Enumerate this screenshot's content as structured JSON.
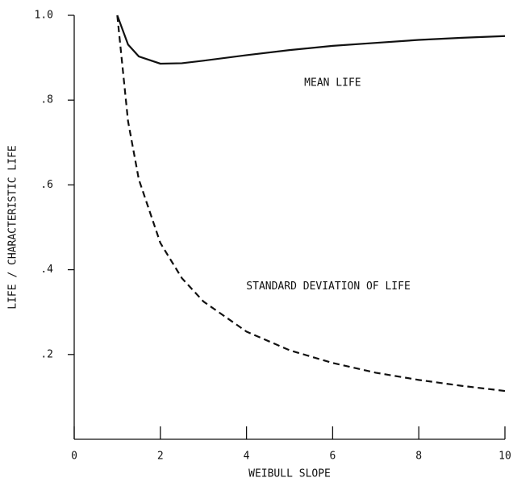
{
  "chart_data": {
    "type": "line",
    "xlabel": "WEIBULL SLOPE",
    "ylabel": "LIFE / CHARACTERISTIC LIFE",
    "x": [
      1,
      1.25,
      1.5,
      2,
      2.5,
      3,
      4,
      5,
      6,
      7,
      8,
      9,
      10
    ],
    "series": [
      {
        "name": "MEAN LIFE",
        "color": "#111111",
        "dash": false,
        "values": [
          1.0,
          0.931,
          0.903,
          0.886,
          0.887,
          0.893,
          0.906,
          0.918,
          0.928,
          0.935,
          0.942,
          0.947,
          0.951
        ]
      },
      {
        "name": "STANDARD DEVIATION OF LIFE",
        "color": "#111111",
        "dash": true,
        "values": [
          1.0,
          0.75,
          0.613,
          0.463,
          0.38,
          0.325,
          0.254,
          0.21,
          0.18,
          0.157,
          0.14,
          0.126,
          0.114
        ]
      }
    ],
    "xlim": [
      0,
      10
    ],
    "xticks": [
      0,
      2,
      4,
      6,
      8,
      10
    ],
    "ylim": [
      0,
      1
    ],
    "yticks": [
      {
        "value": 0.2,
        "label": ".2"
      },
      {
        "value": 0.4,
        "label": ".4"
      },
      {
        "value": 0.6,
        "label": ".6"
      },
      {
        "value": 0.8,
        "label": ".8"
      },
      {
        "value": 1,
        "label": "1.0"
      }
    ],
    "grid": false
  }
}
